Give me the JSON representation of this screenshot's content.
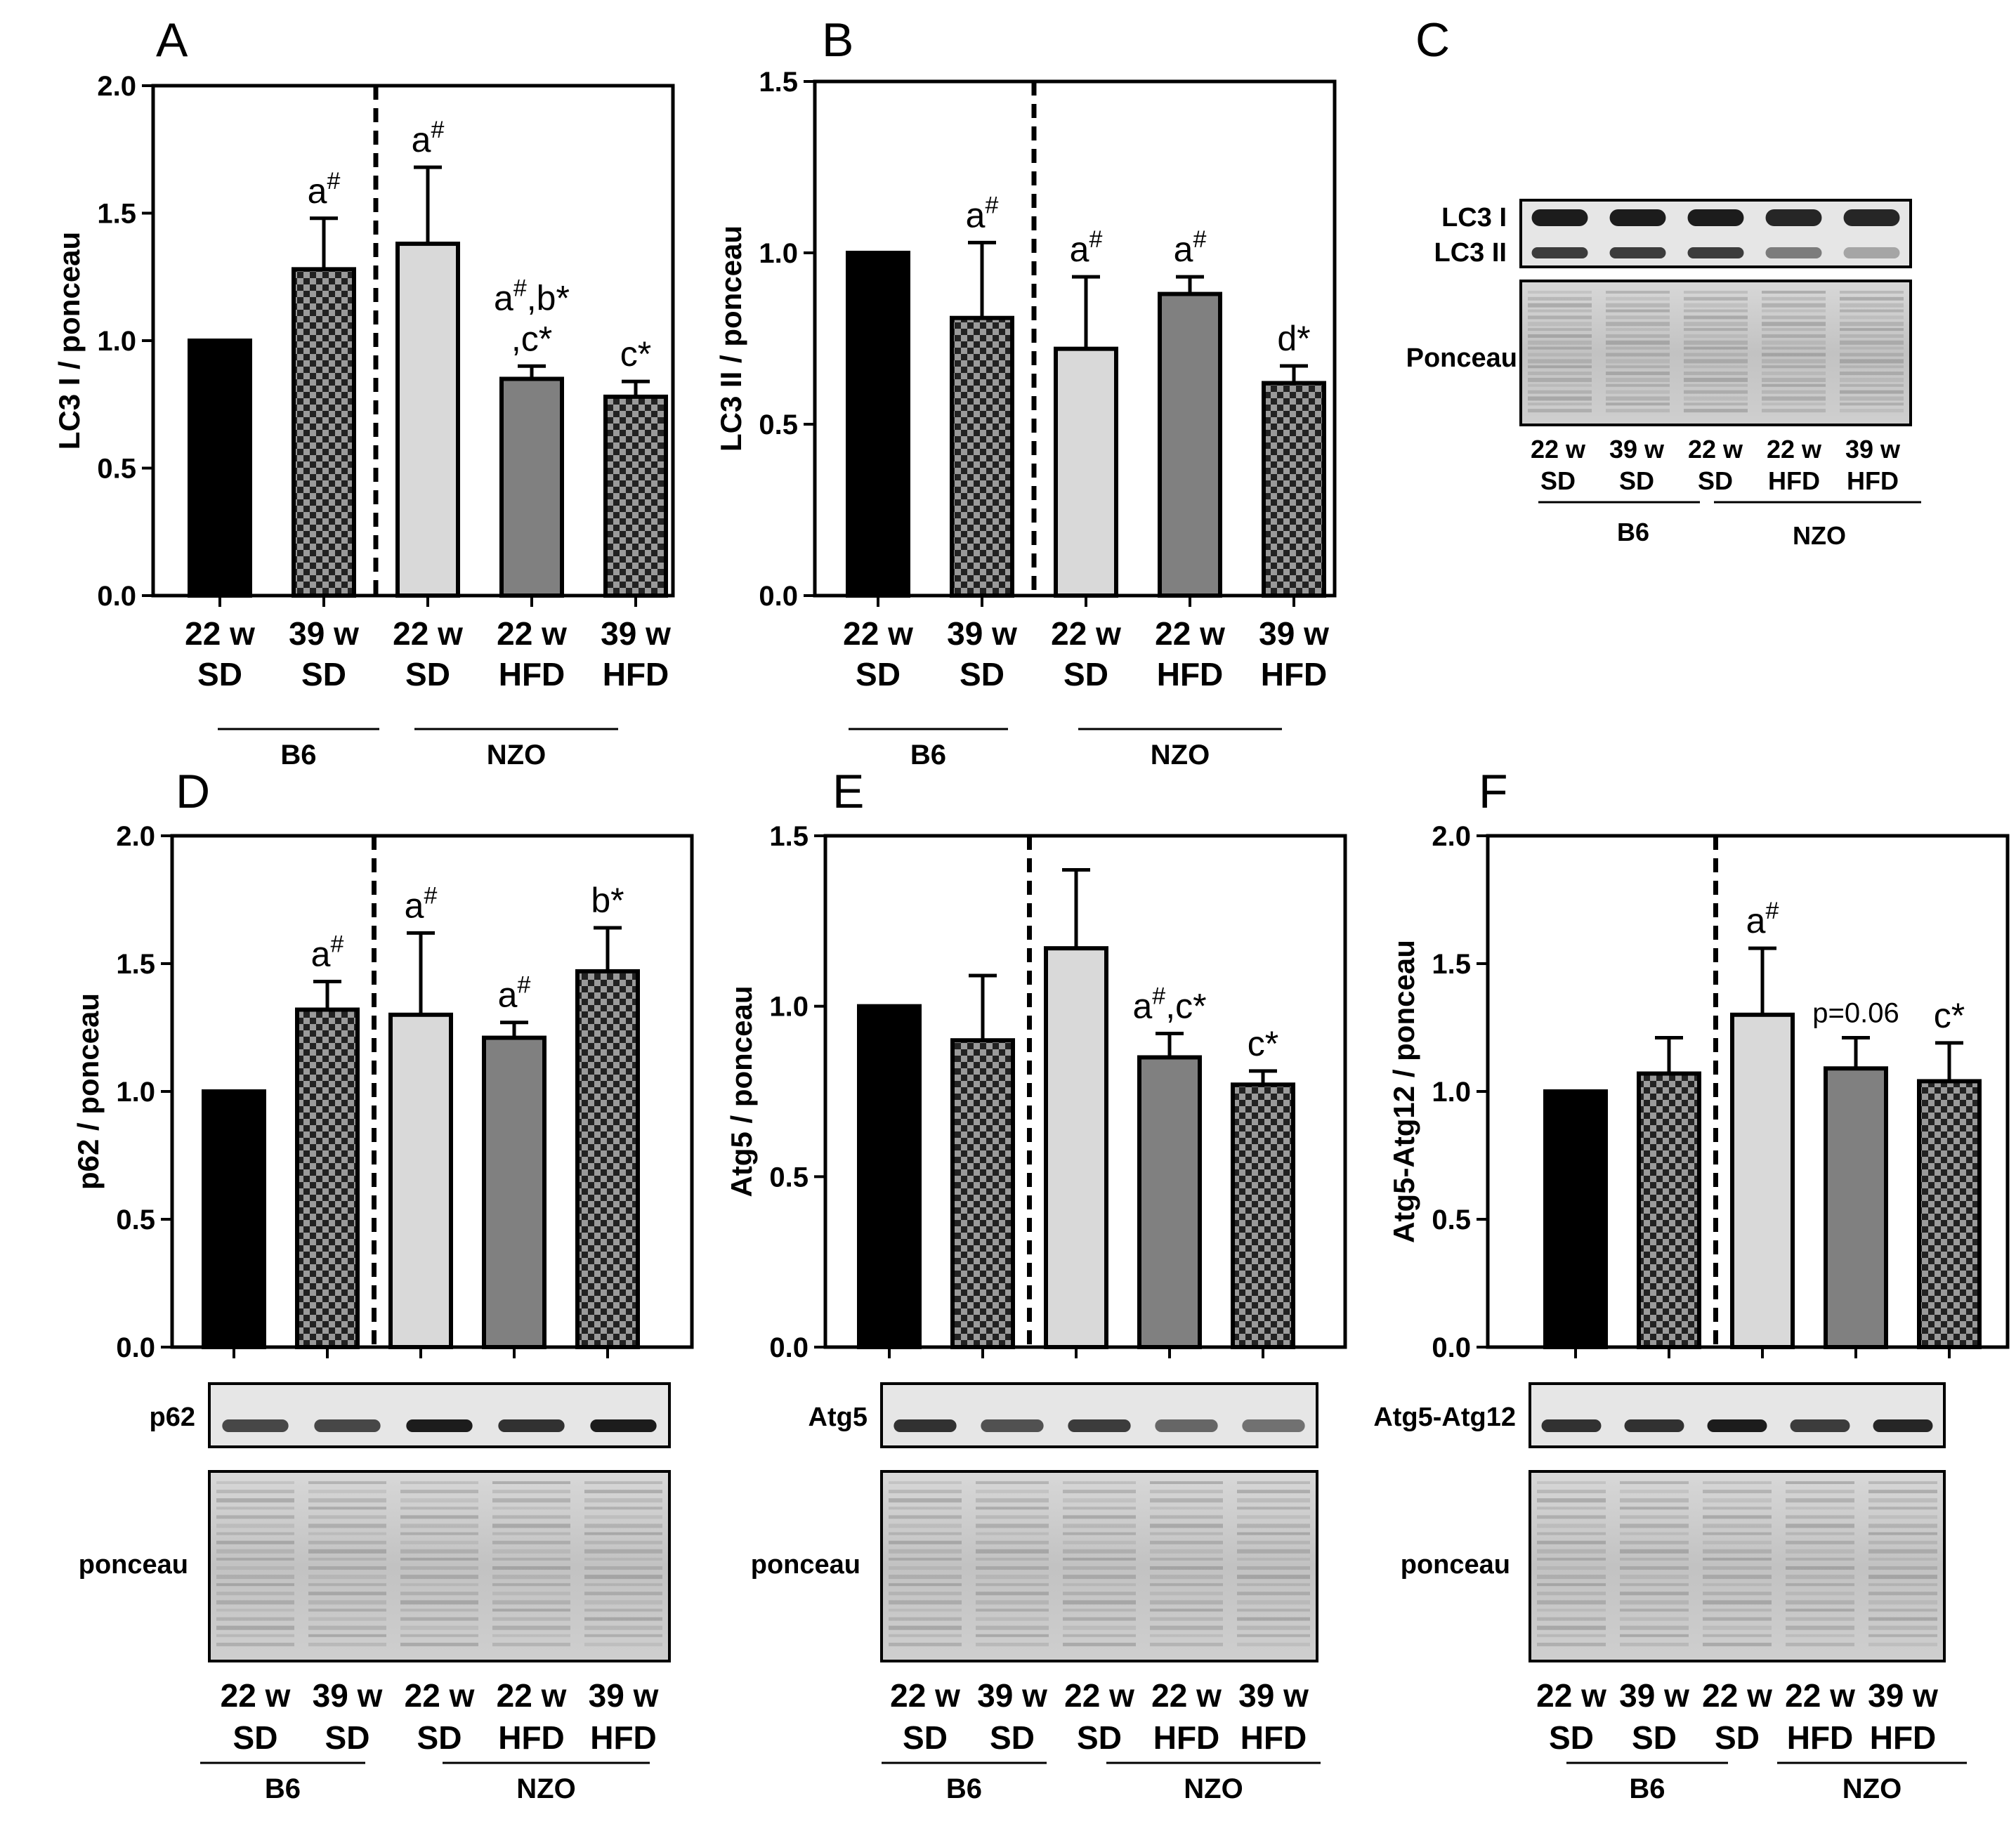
{
  "categories": [
    {
      "line1": "22 w",
      "line2": "SD"
    },
    {
      "line1": "39 w",
      "line2": "SD"
    },
    {
      "line1": "22 w",
      "line2": "SD"
    },
    {
      "line1": "22 w",
      "line2": "HFD"
    },
    {
      "line1": "39 w",
      "line2": "HFD"
    }
  ],
  "groups": {
    "b6": "B6",
    "nzo": "NZO"
  },
  "bar_styles": [
    "black",
    "checker",
    "light",
    "gray",
    "checker"
  ],
  "colors": {
    "black": "#000000",
    "light": "#d9d9d9",
    "gray": "#808080",
    "checker_dark": "#222222",
    "checker_light": "#9a9a9a"
  },
  "chart_data": [
    {
      "panel": "A",
      "type": "bar",
      "ylabel": "LC3 I / ponceau",
      "ylim": [
        0,
        2.0
      ],
      "yticks": [
        "0.0",
        "0.5",
        "1.0",
        "1.5",
        "2.0"
      ],
      "categories": [
        "22 w SD",
        "39 w SD",
        "22 w SD",
        "22 w HFD",
        "39 w HFD"
      ],
      "values": [
        1.0,
        1.28,
        1.38,
        0.85,
        0.78
      ],
      "errors": [
        0,
        0.2,
        0.3,
        0.05,
        0.06
      ],
      "annotations": [
        {
          "bar": 1,
          "lines": [
            [
              {
                "t": "a"
              },
              {
                "t": "#",
                "sup": true
              }
            ]
          ]
        },
        {
          "bar": 2,
          "lines": [
            [
              {
                "t": "a"
              },
              {
                "t": "#",
                "sup": true
              }
            ]
          ]
        },
        {
          "bar": 3,
          "lines": [
            [
              {
                "t": "a"
              },
              {
                "t": "#",
                "sup": true
              },
              {
                "t": ",b*"
              }
            ],
            [
              {
                "t": ",c*"
              }
            ]
          ]
        },
        {
          "bar": 4,
          "lines": [
            [
              {
                "t": "c*"
              }
            ]
          ]
        }
      ]
    },
    {
      "panel": "B",
      "type": "bar",
      "ylabel": "LC3 II / ponceau",
      "ylim": [
        0,
        1.5
      ],
      "yticks": [
        "0.0",
        "0.5",
        "1.0",
        "1.5"
      ],
      "categories": [
        "22 w SD",
        "39 w SD",
        "22 w SD",
        "22 w HFD",
        "39 w HFD"
      ],
      "values": [
        1.0,
        0.81,
        0.72,
        0.88,
        0.62
      ],
      "errors": [
        0,
        0.22,
        0.21,
        0.05,
        0.05
      ],
      "annotations": [
        {
          "bar": 1,
          "lines": [
            [
              {
                "t": "a"
              },
              {
                "t": "#",
                "sup": true
              }
            ]
          ]
        },
        {
          "bar": 2,
          "lines": [
            [
              {
                "t": "a"
              },
              {
                "t": "#",
                "sup": true
              }
            ]
          ]
        },
        {
          "bar": 3,
          "lines": [
            [
              {
                "t": "a"
              },
              {
                "t": "#",
                "sup": true
              }
            ]
          ]
        },
        {
          "bar": 4,
          "lines": [
            [
              {
                "t": "d*"
              }
            ]
          ]
        }
      ]
    },
    {
      "panel": "D",
      "type": "bar",
      "ylabel": "p62 / ponceau",
      "ylim": [
        0,
        2.0
      ],
      "yticks": [
        "0.0",
        "0.5",
        "1.0",
        "1.5",
        "2.0"
      ],
      "categories": [
        "22 w SD",
        "39 w SD",
        "22 w SD",
        "22 w HFD",
        "39 w HFD"
      ],
      "values": [
        1.0,
        1.32,
        1.3,
        1.21,
        1.47
      ],
      "errors": [
        0,
        0.11,
        0.32,
        0.06,
        0.17
      ],
      "annotations": [
        {
          "bar": 1,
          "lines": [
            [
              {
                "t": "a"
              },
              {
                "t": "#",
                "sup": true
              }
            ]
          ]
        },
        {
          "bar": 2,
          "lines": [
            [
              {
                "t": "a"
              },
              {
                "t": "#",
                "sup": true
              }
            ]
          ]
        },
        {
          "bar": 3,
          "lines": [
            [
              {
                "t": "a"
              },
              {
                "t": "#",
                "sup": true
              }
            ]
          ]
        },
        {
          "bar": 4,
          "lines": [
            [
              {
                "t": "b*"
              }
            ]
          ]
        }
      ]
    },
    {
      "panel": "E",
      "type": "bar",
      "ylabel": "Atg5 / ponceau",
      "ylim": [
        0,
        1.5
      ],
      "yticks": [
        "0.0",
        "0.5",
        "1.0",
        "1.5"
      ],
      "categories": [
        "22 w SD",
        "39 w SD",
        "22 w SD",
        "22 w HFD",
        "39 w HFD"
      ],
      "values": [
        1.0,
        0.9,
        1.17,
        0.85,
        0.77
      ],
      "errors": [
        0,
        0.19,
        0.23,
        0.07,
        0.04
      ],
      "annotations": [
        {
          "bar": 3,
          "lines": [
            [
              {
                "t": "a"
              },
              {
                "t": "#",
                "sup": true
              },
              {
                "t": ",c*"
              }
            ]
          ]
        },
        {
          "bar": 4,
          "lines": [
            [
              {
                "t": "c*"
              }
            ]
          ]
        }
      ]
    },
    {
      "panel": "F",
      "type": "bar",
      "ylabel": "Atg5-Atg12 / ponceau",
      "ylim": [
        0,
        2.0
      ],
      "yticks": [
        "0.0",
        "0.5",
        "1.0",
        "1.5",
        "2.0"
      ],
      "categories": [
        "22 w SD",
        "39 w SD",
        "22 w SD",
        "22 w HFD",
        "39 w HFD"
      ],
      "values": [
        1.0,
        1.07,
        1.3,
        1.09,
        1.04
      ],
      "errors": [
        0,
        0.14,
        0.26,
        0.12,
        0.15
      ],
      "annotations": [
        {
          "bar": 2,
          "lines": [
            [
              {
                "t": "a"
              },
              {
                "t": "#",
                "sup": true
              }
            ]
          ]
        },
        {
          "bar": 3,
          "lines": [
            [
              {
                "t": "p=0.06"
              }
            ]
          ]
        },
        {
          "bar": 4,
          "lines": [
            [
              {
                "t": "c*"
              }
            ]
          ]
        }
      ]
    }
  ],
  "blot_c": {
    "panel": "C",
    "band_labels": [
      "LC3 I",
      "LC3 II"
    ],
    "ponceau_label": "Ponceau"
  },
  "blots": {
    "D": {
      "band": "p62",
      "ponceau": "ponceau"
    },
    "E": {
      "band": "Atg5",
      "ponceau": "ponceau"
    },
    "F": {
      "band": "Atg5-Atg12",
      "ponceau": "ponceau"
    }
  }
}
